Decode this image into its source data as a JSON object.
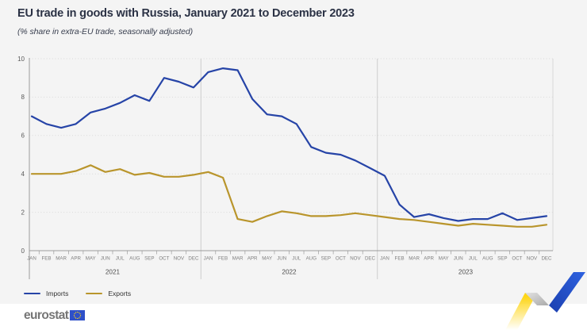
{
  "header": {
    "title": "EU trade in goods with Russia, January 2021 to December 2023",
    "subtitle": "(% share in extra-EU trade, seasonally adjusted)"
  },
  "colors": {
    "imports_line": "#2644A7",
    "exports_line": "#B9952C",
    "panel_bg": "#F4F4F4",
    "footer_bg": "#FFFFFF",
    "title_text": "#2B3245",
    "axis": "#9B9B9B",
    "grid_dotted": "#D9D9D9",
    "month_label": "#7E7E7E",
    "ribbon_yellow": "#FFD617",
    "ribbon_gray": "#C2C2C2",
    "ribbon_blue": "#2653CC",
    "eu_flag_blue": "#2E50C9",
    "eu_star_yellow": "#FFD617"
  },
  "chart_data": {
    "type": "line",
    "title": "EU trade in goods with Russia, January 2021 to December 2023",
    "subtitle": "(% share in extra-EU trade, seasonally adjusted)",
    "ylabel": "% share in extra-EU trade",
    "ylim": [
      0,
      10
    ],
    "yticks": [
      0,
      2,
      4,
      6,
      8,
      10
    ],
    "grid": "horizontal-dotted",
    "legend_position": "bottom-left",
    "month_labels": [
      "JAN",
      "FEB",
      "MAR",
      "APR",
      "MAY",
      "JUN",
      "JUL",
      "AUG",
      "SEP",
      "OCT",
      "NOV",
      "DEC"
    ],
    "years": [
      "2021",
      "2022",
      "2023"
    ],
    "series": [
      {
        "name": "Imports",
        "color": "#2644A7",
        "values": [
          7.0,
          6.6,
          6.4,
          6.6,
          7.2,
          7.4,
          7.7,
          8.1,
          7.8,
          9.0,
          8.8,
          8.5,
          9.3,
          9.5,
          9.4,
          7.9,
          7.1,
          7.0,
          6.6,
          5.4,
          5.1,
          5.0,
          4.7,
          4.3,
          3.9,
          2.4,
          1.75,
          1.9,
          1.7,
          1.55,
          1.65,
          1.65,
          1.95,
          1.6,
          1.7,
          1.8
        ]
      },
      {
        "name": "Exports",
        "color": "#B9952C",
        "values": [
          4.0,
          4.0,
          4.0,
          4.15,
          4.45,
          4.1,
          4.25,
          3.95,
          4.05,
          3.85,
          3.85,
          3.95,
          4.1,
          3.8,
          1.65,
          1.5,
          1.8,
          2.05,
          1.95,
          1.8,
          1.8,
          1.85,
          1.95,
          1.85,
          1.75,
          1.65,
          1.6,
          1.5,
          1.4,
          1.3,
          1.4,
          1.35,
          1.3,
          1.25,
          1.25,
          1.35
        ]
      }
    ]
  },
  "legend": {
    "items": [
      {
        "label": "Imports",
        "color": "#2644A7"
      },
      {
        "label": "Exports",
        "color": "#B9952C"
      }
    ]
  },
  "footer": {
    "logo_text": "eurostat"
  }
}
